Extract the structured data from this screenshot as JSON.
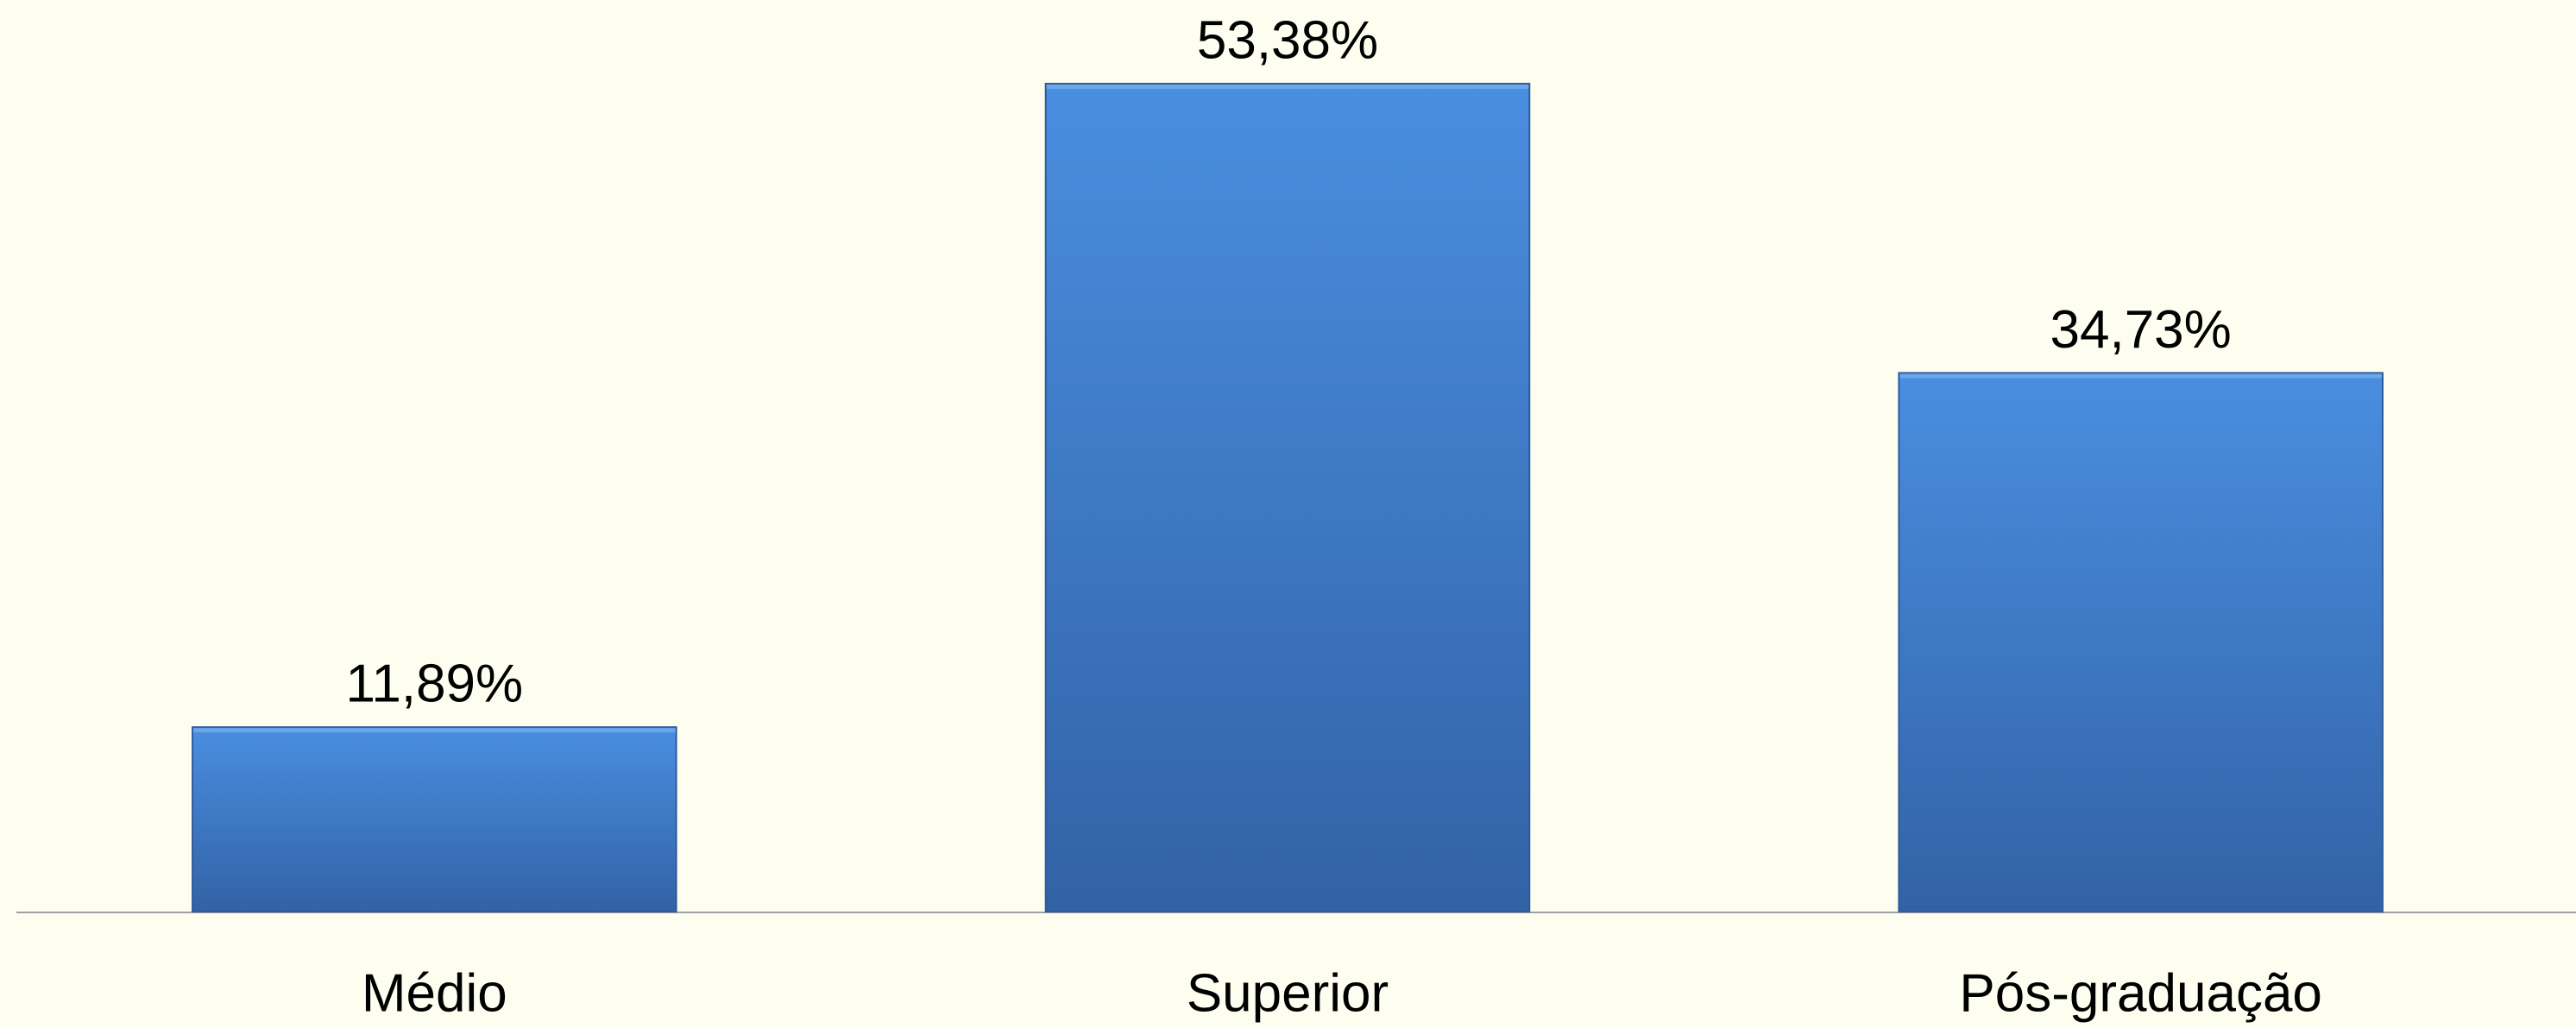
{
  "chart_data": {
    "type": "bar",
    "categories": [
      "Médio",
      "Superior",
      "Pós-graduação"
    ],
    "values": [
      11.89,
      53.38,
      34.73
    ],
    "value_labels": [
      "11,89%",
      "53,38%",
      "34,73%"
    ],
    "color": "#4083d4"
  }
}
